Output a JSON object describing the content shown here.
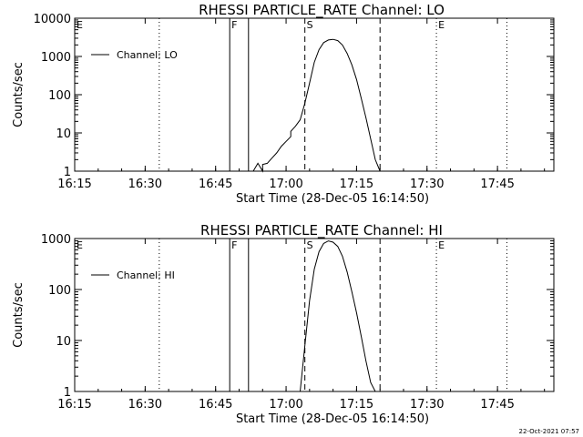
{
  "chart_data": [
    {
      "type": "line",
      "title": "RHESSI PARTICLE_RATE Channel: LO",
      "xlabel": "Start Time (28-Dec-05 16:14:50)",
      "ylabel": "Counts/sec",
      "yscale": "log",
      "xlim": [
        "16:15",
        "17:57"
      ],
      "ylim": [
        1,
        10000
      ],
      "xticks": [
        "16:15",
        "16:30",
        "16:45",
        "17:00",
        "17:15",
        "17:30",
        "17:45"
      ],
      "yticks": [
        "1",
        "10",
        "100",
        "1000",
        "10000"
      ],
      "legend": {
        "label": "Channel: LO",
        "position": "top-left"
      },
      "markers": [
        {
          "label": "E",
          "time": "16:15",
          "style": "dotted"
        },
        {
          "label": "",
          "time": "16:33",
          "style": "dotted"
        },
        {
          "label": "F",
          "time": "16:48",
          "style": "solid"
        },
        {
          "label": "",
          "time": "16:52",
          "style": "solid"
        },
        {
          "label": "S",
          "time": "17:04",
          "style": "dashed"
        },
        {
          "label": "",
          "time": "17:20",
          "style": "dashed"
        },
        {
          "label": "E",
          "time": "17:32",
          "style": "dotted"
        },
        {
          "label": "",
          "time": "17:47",
          "style": "dotted"
        }
      ],
      "series": [
        {
          "name": "Channel: LO",
          "points": [
            [
              "16:53",
              1
            ],
            [
              "16:54",
              1.6
            ],
            [
              "16:55",
              1
            ],
            [
              "16:55",
              1.5
            ],
            [
              "16:56",
              1.6
            ],
            [
              "16:57",
              2.2
            ],
            [
              "16:58",
              3
            ],
            [
              "16:59",
              4.5
            ],
            [
              "17:00",
              6
            ],
            [
              "17:01",
              8
            ],
            [
              "17:01",
              11
            ],
            [
              "17:02",
              15
            ],
            [
              "17:03",
              22
            ],
            [
              "17:04",
              60
            ],
            [
              "17:05",
              200
            ],
            [
              "17:06",
              700
            ],
            [
              "17:07",
              1500
            ],
            [
              "17:08",
              2300
            ],
            [
              "17:09",
              2700
            ],
            [
              "17:10",
              2800
            ],
            [
              "17:11",
              2600
            ],
            [
              "17:12",
              2000
            ],
            [
              "17:13",
              1200
            ],
            [
              "17:14",
              600
            ],
            [
              "17:15",
              250
            ],
            [
              "17:16",
              80
            ],
            [
              "17:17",
              25
            ],
            [
              "17:18",
              7
            ],
            [
              "17:19",
              2
            ],
            [
              "17:20",
              1
            ]
          ]
        }
      ]
    },
    {
      "type": "line",
      "title": "RHESSI PARTICLE_RATE Channel: HI",
      "xlabel": "Start Time (28-Dec-05 16:14:50)",
      "ylabel": "Counts/sec",
      "yscale": "log",
      "xlim": [
        "16:15",
        "17:57"
      ],
      "ylim": [
        1,
        1000
      ],
      "xticks": [
        "16:15",
        "16:30",
        "16:45",
        "17:00",
        "17:15",
        "17:30",
        "17:45"
      ],
      "yticks": [
        "1",
        "10",
        "100",
        "1000"
      ],
      "legend": {
        "label": "Channel: HI",
        "position": "top-left"
      },
      "markers": [
        {
          "label": "E",
          "time": "16:15",
          "style": "dotted"
        },
        {
          "label": "",
          "time": "16:33",
          "style": "dotted"
        },
        {
          "label": "F",
          "time": "16:48",
          "style": "solid"
        },
        {
          "label": "",
          "time": "16:52",
          "style": "solid"
        },
        {
          "label": "S",
          "time": "17:04",
          "style": "dashed"
        },
        {
          "label": "",
          "time": "17:20",
          "style": "dashed"
        },
        {
          "label": "E",
          "time": "17:32",
          "style": "dotted"
        },
        {
          "label": "",
          "time": "17:47",
          "style": "dotted"
        }
      ],
      "series": [
        {
          "name": "Channel: HI",
          "points": [
            [
              "17:03",
              1
            ],
            [
              "17:04",
              8
            ],
            [
              "17:05",
              60
            ],
            [
              "17:06",
              250
            ],
            [
              "17:07",
              550
            ],
            [
              "17:08",
              800
            ],
            [
              "17:09",
              900
            ],
            [
              "17:10",
              850
            ],
            [
              "17:11",
              700
            ],
            [
              "17:12",
              450
            ],
            [
              "17:13",
              220
            ],
            [
              "17:14",
              90
            ],
            [
              "17:15",
              35
            ],
            [
              "17:16",
              12
            ],
            [
              "17:17",
              4
            ],
            [
              "17:18",
              1.5
            ],
            [
              "17:19",
              1
            ]
          ]
        }
      ]
    }
  ],
  "footer": {
    "timestamp": "22-Oct-2021 07:57"
  }
}
